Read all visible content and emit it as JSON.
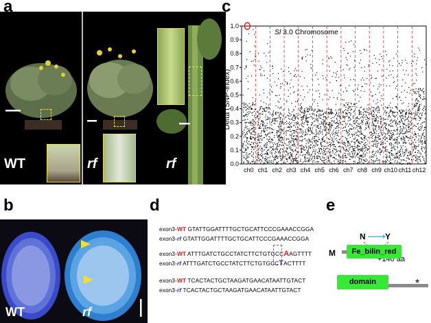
{
  "panels": {
    "a": {
      "letter": "a",
      "label_wt": "WT",
      "label_rf1": "rf",
      "label_rf2": "rf"
    },
    "b": {
      "letter": "b",
      "label_wt": "WT",
      "label_rf": "rf"
    },
    "c": {
      "letter": "c",
      "annotation_italic": "Sl",
      "annotation": " 3.0  Chromosome"
    },
    "d": {
      "letter": "d",
      "rows": [
        {
          "tag": "exon3-",
          "geno": "WT",
          "pre": "GTATTGGATTTTGCTGCATTCCCGAAACCGGA",
          "mut": "",
          "post": ""
        },
        {
          "tag": "exon3-",
          "geno": "rf",
          "pre": "GTATTGGATTTTGCTGCATTCCCGAAACCGGA",
          "mut": "",
          "post": ""
        },
        {
          "tag": "exon3-",
          "geno": "WT",
          "pre": "ATTTGATCTGCCTATCTTCTGTGCC",
          "mut": "A",
          "post": "AGTTTT"
        },
        {
          "tag": "exon3-",
          "geno": "rf",
          "pre": "ATTTGATCTGCCTATCTTCTGTGCC",
          "mut": "T",
          "post": "ACTTTT"
        },
        {
          "tag": "exon3-",
          "geno": "WT",
          "pre": "TCACTACTGCTAAGATGAACATAATTGTACT",
          "mut": "",
          "post": ""
        },
        {
          "tag": "exon3-",
          "geno": "rf",
          "pre": "TCACTACTGCTAAGATGAACATAATTGTACT",
          "mut": "",
          "post": ""
        }
      ]
    },
    "e": {
      "letter": "e",
      "n_label": "N",
      "y_label": "Y",
      "aa_label": "+140 aa",
      "m_label": "M",
      "domain1": "Fe_bilin_red",
      "domain2": "domain",
      "stop": "*"
    }
  },
  "colors": {
    "wt_red": "#e02020",
    "rf_blue": "#1a2fc0",
    "domain_green": "#37e837",
    "chrom_line_red": "#e03030",
    "inset_yellow": "#e8e23a"
  },
  "chart_data": {
    "type": "scatter",
    "ylabel": "Delta (SNP-index)",
    "ylim": [
      0,
      1.0
    ],
    "yticks": [
      "0.0",
      "0.1",
      "0.2",
      "0.3",
      "0.4",
      "0.5",
      "0.6",
      "0.7",
      "0.8",
      "0.9",
      "1.0"
    ],
    "categories": [
      "ch0",
      "ch1",
      "ch2",
      "ch3",
      "ch4",
      "ch5",
      "ch6",
      "ch7",
      "ch8",
      "ch9",
      "ch10",
      "ch11",
      "ch12"
    ],
    "highlight": {
      "category": "ch0",
      "value": 1.0
    },
    "chromosome_profiles": [
      {
        "name": "ch0",
        "top": 0.98,
        "dense": 0.45
      },
      {
        "name": "ch1",
        "top": 0.88,
        "dense": 0.42
      },
      {
        "name": "ch2",
        "top": 0.72,
        "dense": 0.38
      },
      {
        "name": "ch3",
        "top": 0.7,
        "dense": 0.36
      },
      {
        "name": "ch4",
        "top": 0.86,
        "dense": 0.42
      },
      {
        "name": "ch5",
        "top": 0.76,
        "dense": 0.4
      },
      {
        "name": "ch6",
        "top": 0.8,
        "dense": 0.4
      },
      {
        "name": "ch7",
        "top": 0.9,
        "dense": 0.45
      },
      {
        "name": "ch8",
        "top": 0.84,
        "dense": 0.42
      },
      {
        "name": "ch9",
        "top": 0.8,
        "dense": 0.42
      },
      {
        "name": "ch10",
        "top": 0.82,
        "dense": 0.42
      },
      {
        "name": "ch11",
        "top": 0.76,
        "dense": 0.4
      },
      {
        "name": "ch12",
        "top": 0.9,
        "dense": 0.55
      }
    ]
  }
}
